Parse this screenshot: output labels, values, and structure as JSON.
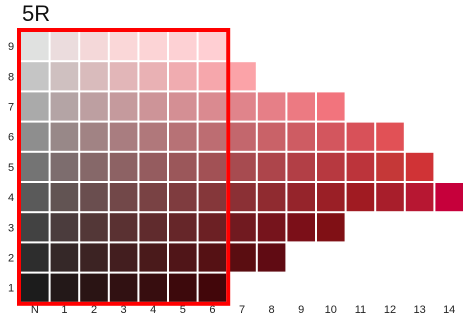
{
  "chart_data": {
    "type": "heatmap",
    "title": "5R",
    "x_ticks": [
      "N",
      "1",
      "2",
      "3",
      "4",
      "5",
      "6",
      "7",
      "8",
      "9",
      "10",
      "11",
      "12",
      "13",
      "14"
    ],
    "y_ticks": [
      "1",
      "2",
      "3",
      "4",
      "5",
      "6",
      "7",
      "8",
      "9"
    ],
    "max_chroma_index_by_value": {
      "1": 6,
      "2": 8,
      "3": 10,
      "4": 14,
      "5": 13,
      "6": 12,
      "7": 10,
      "8": 7,
      "9": 6
    },
    "rows": [
      {
        "value": 9,
        "colors": [
          "#e0e1e0",
          "#ebdcdd",
          "#f4d8d9",
          "#fad7d8",
          "#fcd4d6",
          "#fdd1d4",
          "#ffcfd3"
        ]
      },
      {
        "value": 8,
        "colors": [
          "#c5c5c5",
          "#cfc0c0",
          "#d9bbbc",
          "#e2b6b8",
          "#e9b1b4",
          "#f0acb0",
          "#f6a7ac",
          "#fba3a8"
        ]
      },
      {
        "value": 7,
        "colors": [
          "#aaaaaa",
          "#b4a4a5",
          "#bd9fa1",
          "#c59a9d",
          "#cd9498",
          "#d48f94",
          "#da8a90",
          "#e0848b",
          "#e67f87",
          "#ec7a82",
          "#f2747d"
        ]
      },
      {
        "value": 6,
        "colors": [
          "#8e8e8e",
          "#988888",
          "#a18384",
          "#a97d80",
          "#b0787b",
          "#b77276",
          "#bd6d72",
          "#c3676d",
          "#c96268",
          "#ce5c63",
          "#d3565e",
          "#d85159",
          "#e15156"
        ]
      },
      {
        "value": 5,
        "colors": [
          "#747474",
          "#7d6d6e",
          "#866869",
          "#8d6264",
          "#955c5f",
          "#9b575a",
          "#a25155",
          "#a74b50",
          "#ad454b",
          "#b23f46",
          "#b73940",
          "#bc343b",
          "#c53838",
          "#d03336"
        ]
      },
      {
        "value": 4,
        "colors": [
          "#5a5a5a",
          "#625453",
          "#6a4e4f",
          "#724849",
          "#794244",
          "#7f3c3f",
          "#85373a",
          "#8b3035",
          "#902b30",
          "#95242b",
          "#9a1f26",
          "#a01b22",
          "#a81e2b",
          "#b71732",
          "#c6003b"
        ]
      },
      {
        "value": 3,
        "colors": [
          "#424242",
          "#4b3c3d",
          "#533737",
          "#5a3132",
          "#602b2d",
          "#662629",
          "#6c2024",
          "#711a20",
          "#76141c",
          "#7b0f18",
          "#801015"
        ]
      },
      {
        "value": 2,
        "colors": [
          "#2d2d2d",
          "#352828",
          "#3c2323",
          "#431e1f",
          "#4a1a1b",
          "#501518",
          "#551114",
          "#5a0d11",
          "#600b13"
        ]
      },
      {
        "value": 1,
        "colors": [
          "#1c1c1c",
          "#231818",
          "#2a1414",
          "#311112",
          "#370d0f",
          "#3d090c",
          "#42060a"
        ]
      }
    ],
    "highlight": {
      "from_chroma": "N",
      "to_chroma": "6",
      "from_value": 1,
      "to_value": 9,
      "color": "#ff0000"
    }
  }
}
